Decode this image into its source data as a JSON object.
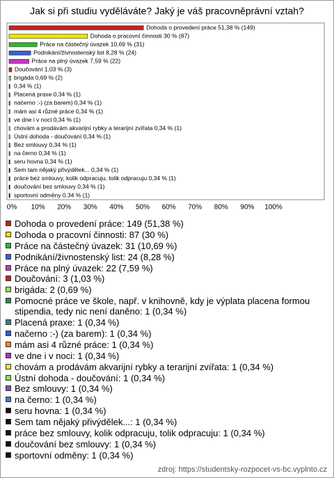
{
  "chart_data": {
    "type": "bar",
    "orientation": "horizontal",
    "title": "Jak si při studiu vyděláváte? Jaký je váš pracovněprávní vztah?",
    "values": [
      51.38,
      30,
      10.69,
      8.28,
      7.59,
      1.03,
      0.69,
      0.34,
      0.34,
      0.34,
      0.34,
      0.34,
      0.34,
      0.34,
      0.34,
      0.34,
      0.34,
      0.34,
      0.34,
      0.34,
      0.34
    ],
    "value_labels": [
      "Dohoda o provedení práce 51,38 % (149)",
      "Dohoda o pracovní činnosti 30 % (87)",
      "Práce na částečný úvazek 10,69 % (31)",
      "Podnikání/živnostenský list 8,28 % (24)",
      "Práce na plný úvazek 7,59 % (22)",
      "Doučování 1,03 % (3)",
      "brigáda 0,69 % (2)",
      "0,34 % (1)",
      "Placená praxe 0,34 % (1)",
      "načerno :-) (za barem) 0,34 % (1)",
      "mám asi 4 různé práce 0,34 % (1)",
      "ve dne i v noci 0,34 % (1)",
      "chovám a prodávám akvarijní rybky a terarijní zvířata 0,34 % (1)",
      "Ústní dohoda - doučování 0,34 % (1)",
      "Bez smlouvy 0,34 % (1)",
      "na černo 0,34 % (1)",
      "seru hovna 0,34 % (1)",
      "Sem tam nějaký přivýdělek... 0,34 % (1)",
      "práce bez smlouvy, kolik odpracuju, tolik odpracuju 0,34 % (1)",
      "doučování bez smlouvy 0,34 % (1)",
      "sportovní odměny 0,34 % (1)"
    ],
    "legend_labels": [
      "Dohoda o provedení práce: 149 (51,38 %)",
      "Dohoda o pracovní činnosti: 87 (30 %)",
      "Práce na částečný úvazek: 31 (10,69 %)",
      "Podnikání/živnostenský list: 24 (8,28 %)",
      "Práce na plný úvazek: 22 (7,59 %)",
      "Doučování: 3 (1,03 %)",
      "brigáda: 2 (0,69 %)",
      "Pomocné práce ve škole, např. v knihovně, kdy je výplata placena formou stipendia, tedy nic není daněno: 1 (0,34 %)",
      "Placená praxe: 1 (0,34 %)",
      "načerno :-) (za barem): 1 (0,34 %)",
      "mám asi 4 různé práce: 1 (0,34 %)",
      "ve dne i v noci: 1 (0,34 %)",
      "chovám a prodávám akvarijní rybky a terarijní zvířata: 1 (0,34 %)",
      "Ústní dohoda - doučování: 1 (0,34 %)",
      "Bez smlouvy: 1 (0,34 %)",
      "na černo: 1 (0,34 %)",
      "seru hovna: 1 (0,34 %)",
      "Sem tam nějaký přivýdělek...: 1 (0,34 %)",
      "práce bez smlouvy, kolik odpracuju, tolik odpracuju: 1 (0,34 %)",
      "doučování bez smlouvy: 1 (0,34 %)",
      "sportovní odměny: 1 (0,34 %)"
    ],
    "colors": [
      "#c0281e",
      "#f2e600",
      "#2eb82e",
      "#3a5fd6",
      "#c03ac0",
      "#c0281e",
      "#9be05a",
      "#2e8b57",
      "#3d7a8a",
      "#2f5fd0",
      "#f08a24",
      "#b030c0",
      "#e8e84a",
      "#8ee04a",
      "#7a4fc0",
      "#4a7ad0",
      "#111111",
      "#111111",
      "#111111",
      "#111111",
      "#111111"
    ],
    "xlim": [
      0,
      100
    ],
    "xticks": [
      {
        "value": 0,
        "label": "0%"
      },
      {
        "value": 10,
        "label": "10%"
      },
      {
        "value": 20,
        "label": "20%"
      },
      {
        "value": 30,
        "label": "30%"
      },
      {
        "value": 40,
        "label": "40%"
      },
      {
        "value": 50,
        "label": "50%"
      },
      {
        "value": 60,
        "label": "60%"
      },
      {
        "value": 70,
        "label": "70%"
      },
      {
        "value": 80,
        "label": "80%"
      },
      {
        "value": 90,
        "label": "90%"
      },
      {
        "value": 100,
        "label": "100%"
      }
    ],
    "source": "zdroj: https://studentsky-rozpocet-vs-bc.vyplnto.cz"
  }
}
